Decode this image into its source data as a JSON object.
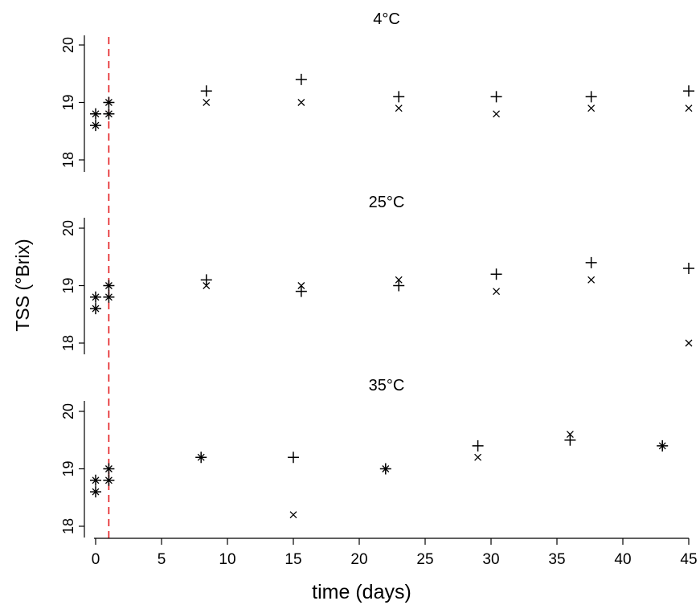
{
  "chart_data": {
    "type": "scatter",
    "ylabel": "TSS (°Brix)",
    "xlabel": "time (days)",
    "xlim": [
      -1,
      46
    ],
    "xticks": [
      0,
      5,
      10,
      15,
      20,
      25,
      30,
      35,
      40,
      45
    ],
    "ylim": [
      17.8,
      20.2
    ],
    "yticks": [
      18,
      19,
      20
    ],
    "reference_line": {
      "x": 1,
      "color": "#e31a1c",
      "style": "dashed"
    },
    "grid": false,
    "legend": "none",
    "panels": [
      {
        "title": "4°C",
        "series": [
          {
            "marker": "plus",
            "points": [
              [
                0,
                18.6
              ],
              [
                0,
                18.8
              ],
              [
                1,
                18.8
              ],
              [
                1,
                19.0
              ],
              [
                8.4,
                19.2
              ],
              [
                15.6,
                19.4
              ],
              [
                23,
                19.1
              ],
              [
                30.4,
                19.1
              ],
              [
                37.6,
                19.1
              ],
              [
                45,
                19.2
              ]
            ]
          },
          {
            "marker": "cross",
            "points": [
              [
                0,
                18.6
              ],
              [
                0,
                18.8
              ],
              [
                1,
                18.8
              ],
              [
                1,
                19.0
              ],
              [
                8.4,
                19.0
              ],
              [
                15.6,
                19.0
              ],
              [
                23,
                18.9
              ],
              [
                30.4,
                18.8
              ],
              [
                37.6,
                18.9
              ],
              [
                45,
                18.9
              ]
            ]
          }
        ]
      },
      {
        "title": "25°C",
        "series": [
          {
            "marker": "plus",
            "points": [
              [
                0,
                18.6
              ],
              [
                0,
                18.8
              ],
              [
                1,
                18.8
              ],
              [
                1,
                19.0
              ],
              [
                8.4,
                19.1
              ],
              [
                15.6,
                18.9
              ],
              [
                23,
                19.0
              ],
              [
                30.4,
                19.2
              ],
              [
                37.6,
                19.4
              ],
              [
                45,
                19.3
              ]
            ]
          },
          {
            "marker": "cross",
            "points": [
              [
                0,
                18.6
              ],
              [
                0,
                18.8
              ],
              [
                1,
                18.8
              ],
              [
                1,
                19.0
              ],
              [
                8.4,
                19.0
              ],
              [
                15.6,
                19.0
              ],
              [
                23,
                19.1
              ],
              [
                30.4,
                18.9
              ],
              [
                37.6,
                19.1
              ],
              [
                45,
                18.0
              ]
            ]
          }
        ]
      },
      {
        "title": "35°C",
        "series": [
          {
            "marker": "plus",
            "points": [
              [
                0,
                18.6
              ],
              [
                0,
                18.8
              ],
              [
                1,
                18.8
              ],
              [
                1,
                19.0
              ],
              [
                8,
                19.2
              ],
              [
                15,
                19.2
              ],
              [
                22,
                19.0
              ],
              [
                29,
                19.4
              ],
              [
                36,
                19.5
              ],
              [
                43,
                19.4
              ]
            ]
          },
          {
            "marker": "cross",
            "points": [
              [
                0,
                18.6
              ],
              [
                0,
                18.8
              ],
              [
                1,
                18.8
              ],
              [
                1,
                19.0
              ],
              [
                8,
                19.2
              ],
              [
                15,
                18.2
              ],
              [
                22,
                19.0
              ],
              [
                29,
                19.2
              ],
              [
                36,
                19.6
              ],
              [
                43,
                19.4
              ]
            ]
          }
        ]
      }
    ]
  }
}
